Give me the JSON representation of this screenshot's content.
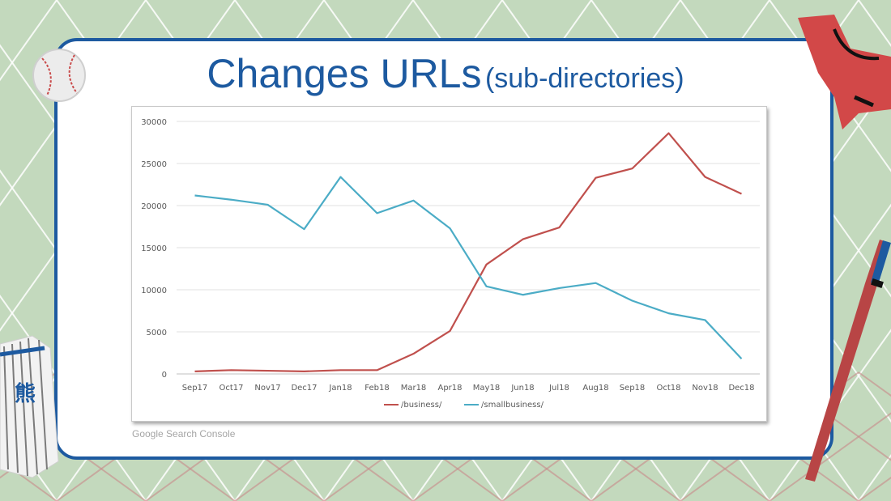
{
  "slide": {
    "title_main": "Changes URLs",
    "title_sub": "(sub-directories)",
    "source": "Google Search Console"
  },
  "colors": {
    "background": "#c3d9bd",
    "card_border": "#1d5aa0",
    "title": "#1d5aa0",
    "business": "#c0504d",
    "smallbusiness": "#4bacc6"
  },
  "decorations": [
    "baseball-icon",
    "baseball-glove-icon",
    "baseball-jersey-icon",
    "baseball-bat-icon"
  ],
  "chart_data": {
    "type": "line",
    "categories": [
      "Sep17",
      "Oct17",
      "Nov17",
      "Dec17",
      "Jan18",
      "Feb18",
      "Mar18",
      "Apr18",
      "May18",
      "Jun18",
      "Jul18",
      "Aug18",
      "Sep18",
      "Oct18",
      "Nov18",
      "Dec18"
    ],
    "series": [
      {
        "name": "/business/",
        "color": "#c0504d",
        "values": [
          300,
          450,
          380,
          300,
          450,
          450,
          2400,
          5100,
          13000,
          16000,
          17400,
          23300,
          24400,
          28600,
          23400,
          21400
        ]
      },
      {
        "name": "/smallbusiness/",
        "color": "#4bacc6",
        "values": [
          21200,
          20700,
          20100,
          17200,
          23400,
          19100,
          20600,
          17300,
          10400,
          9400,
          10200,
          10800,
          8700,
          7200,
          6400,
          1800
        ]
      }
    ],
    "ylim": [
      0,
      30000
    ],
    "yticks": [
      0,
      5000,
      10000,
      15000,
      20000,
      25000,
      30000
    ],
    "grid": true,
    "legend": "bottom-center"
  }
}
